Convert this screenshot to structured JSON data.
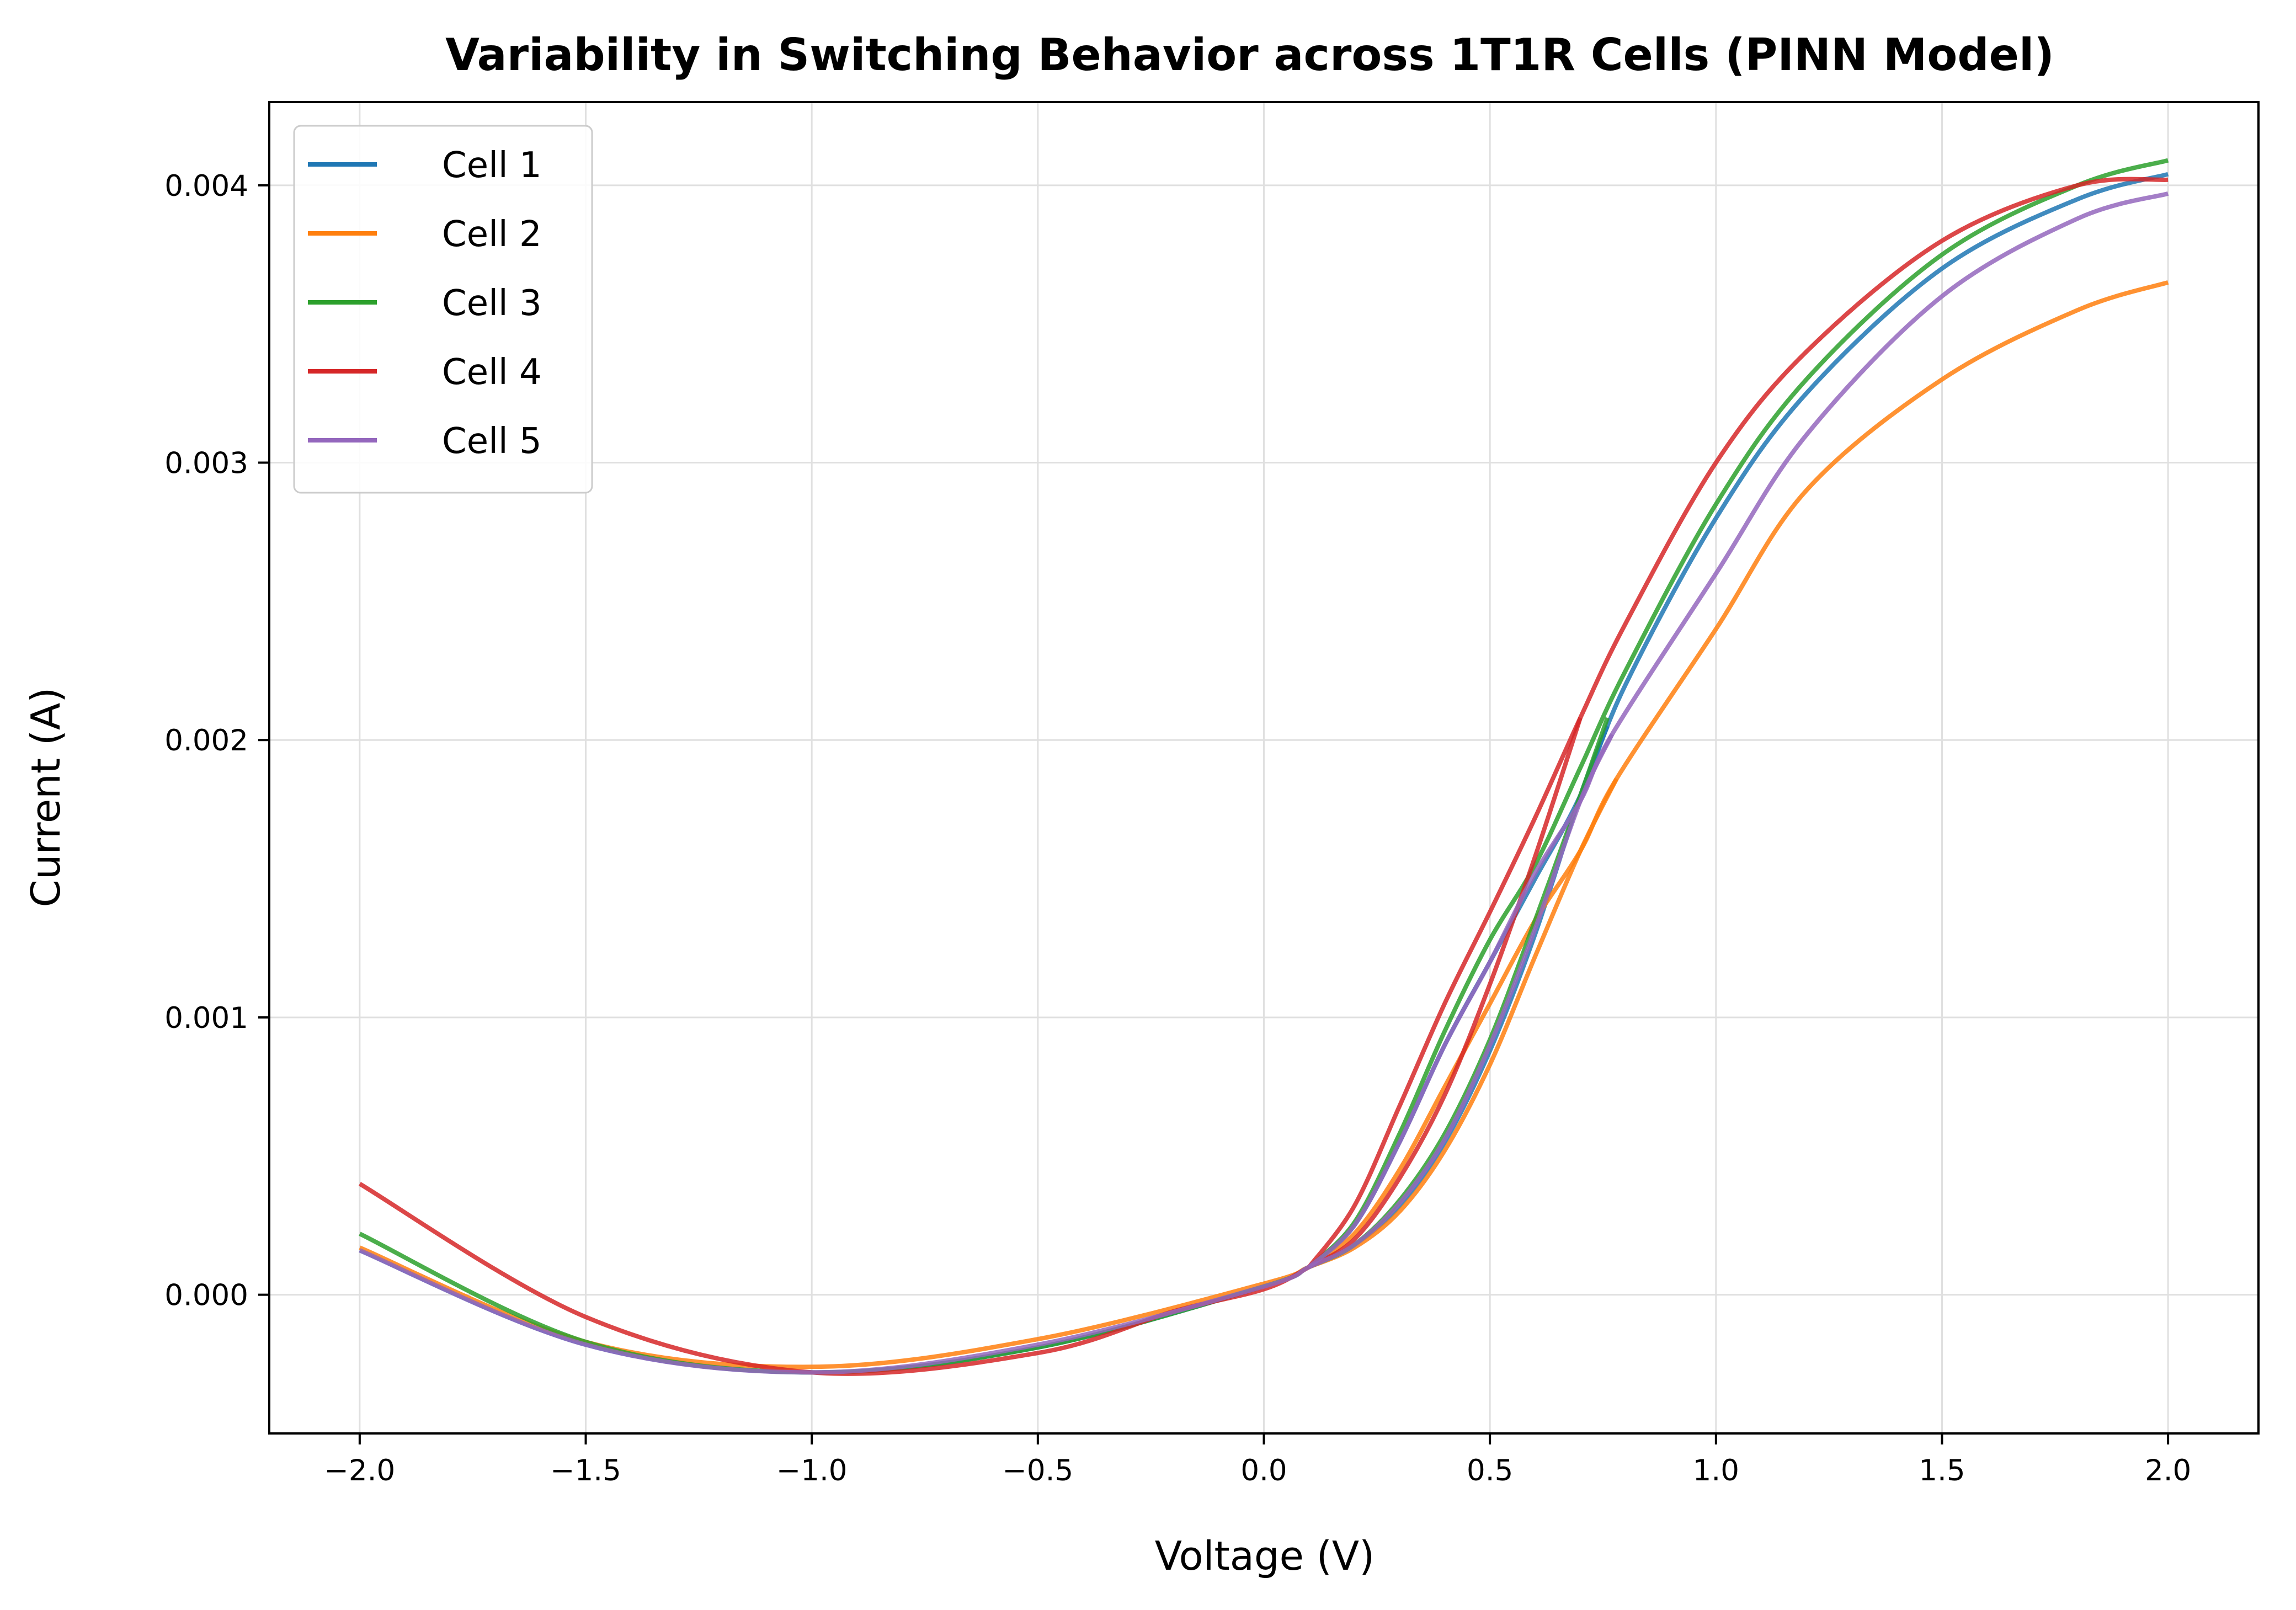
{
  "chart_data": {
    "type": "line",
    "title": "Variability in Switching Behavior across 1T1R Cells (PINN Model)",
    "xlabel": "Voltage (V)",
    "ylabel": "Current (A)",
    "xlim": [
      -2.2,
      2.2
    ],
    "ylim": [
      -0.0005,
      0.0043
    ],
    "xticks": [
      -2.0,
      -1.5,
      -1.0,
      -0.5,
      0.0,
      0.5,
      1.0,
      1.5,
      2.0
    ],
    "xtick_labels": [
      "−2.0",
      "−1.5",
      "−1.0",
      "−0.5",
      "0.0",
      "0.5",
      "1.0",
      "1.5",
      "2.0"
    ],
    "yticks": [
      0.0,
      0.001,
      0.002,
      0.003,
      0.004
    ],
    "ytick_labels": [
      "0.000",
      "0.001",
      "0.002",
      "0.003",
      "0.004"
    ],
    "grid": true,
    "legend_position": "upper-left",
    "series": [
      {
        "name": "Cell 1",
        "color": "#1f77b4",
        "branch_up": [
          [
            -2.0,
            0.00016
          ],
          [
            -1.5,
            -0.00018
          ],
          [
            -1.0,
            -0.00028
          ],
          [
            -0.5,
            -0.00019
          ],
          [
            0.0,
            3e-05
          ],
          [
            0.1,
            0.0001
          ],
          [
            0.2,
            0.00018
          ],
          [
            0.3,
            0.00032
          ],
          [
            0.4,
            0.00055
          ],
          [
            0.5,
            0.00088
          ],
          [
            0.6,
            0.0013
          ],
          [
            0.7,
            0.0018
          ],
          [
            0.76,
            0.00205
          ]
        ],
        "branch_main": [
          [
            0.1,
            0.0001
          ],
          [
            0.2,
            0.00025
          ],
          [
            0.3,
            0.00055
          ],
          [
            0.4,
            0.0009
          ],
          [
            0.5,
            0.0012
          ],
          [
            0.6,
            0.0015
          ],
          [
            0.7,
            0.0018
          ],
          [
            0.8,
            0.0022
          ],
          [
            1.0,
            0.0028
          ],
          [
            1.2,
            0.00325
          ],
          [
            1.5,
            0.0037
          ],
          [
            1.8,
            0.00395
          ],
          [
            2.0,
            0.00404
          ]
        ]
      },
      {
        "name": "Cell 2",
        "color": "#ff7f0e",
        "branch_up": [
          [
            -2.0,
            0.00017
          ],
          [
            -1.5,
            -0.00017
          ],
          [
            -1.0,
            -0.00026
          ],
          [
            -0.5,
            -0.00016
          ],
          [
            0.0,
            4e-05
          ],
          [
            0.1,
            0.0001
          ],
          [
            0.2,
            0.00017
          ],
          [
            0.3,
            0.0003
          ],
          [
            0.4,
            0.00052
          ],
          [
            0.5,
            0.00083
          ],
          [
            0.6,
            0.00122
          ],
          [
            0.7,
            0.0016
          ],
          [
            0.78,
            0.00186
          ]
        ],
        "branch_main": [
          [
            0.1,
            0.0001
          ],
          [
            0.2,
            0.00022
          ],
          [
            0.3,
            0.00045
          ],
          [
            0.4,
            0.00075
          ],
          [
            0.5,
            0.00105
          ],
          [
            0.6,
            0.00135
          ],
          [
            0.7,
            0.0016
          ],
          [
            0.78,
            0.00186
          ],
          [
            1.0,
            0.0024
          ],
          [
            1.2,
            0.0029
          ],
          [
            1.5,
            0.0033
          ],
          [
            1.8,
            0.00355
          ],
          [
            2.0,
            0.00365
          ]
        ]
      },
      {
        "name": "Cell 3",
        "color": "#2ca02c",
        "branch_up": [
          [
            -2.0,
            0.00022
          ],
          [
            -1.5,
            -0.00017
          ],
          [
            -1.0,
            -0.00028
          ],
          [
            -0.5,
            -0.00019
          ],
          [
            0.0,
            3e-05
          ],
          [
            0.1,
            0.0001
          ],
          [
            0.2,
            0.00018
          ],
          [
            0.3,
            0.00034
          ],
          [
            0.4,
            0.00058
          ],
          [
            0.5,
            0.00092
          ],
          [
            0.6,
            0.00135
          ],
          [
            0.7,
            0.0018
          ],
          [
            0.76,
            0.00208
          ]
        ],
        "branch_main": [
          [
            0.1,
            0.0001
          ],
          [
            0.2,
            0.00026
          ],
          [
            0.3,
            0.00058
          ],
          [
            0.4,
            0.00095
          ],
          [
            0.5,
            0.00128
          ],
          [
            0.6,
            0.00155
          ],
          [
            0.7,
            0.0019
          ],
          [
            0.8,
            0.00225
          ],
          [
            1.0,
            0.00285
          ],
          [
            1.2,
            0.0033
          ],
          [
            1.5,
            0.00375
          ],
          [
            1.8,
            0.004
          ],
          [
            2.0,
            0.00409
          ]
        ]
      },
      {
        "name": "Cell 4",
        "color": "#d62728",
        "branch_up": [
          [
            -2.0,
            0.0004
          ],
          [
            -1.5,
            -8e-05
          ],
          [
            -1.0,
            -0.00028
          ],
          [
            -0.5,
            -0.00021
          ],
          [
            -0.2,
            -6e-05
          ],
          [
            0.0,
            2e-05
          ],
          [
            0.1,
            0.0001
          ],
          [
            0.2,
            0.0002
          ],
          [
            0.3,
            0.00042
          ],
          [
            0.4,
            0.00072
          ],
          [
            0.5,
            0.00112
          ],
          [
            0.6,
            0.00158
          ],
          [
            0.7,
            0.00208
          ]
        ],
        "branch_main": [
          [
            0.1,
            0.0001
          ],
          [
            0.2,
            0.00032
          ],
          [
            0.3,
            0.00068
          ],
          [
            0.4,
            0.00105
          ],
          [
            0.5,
            0.00138
          ],
          [
            0.6,
            0.00172
          ],
          [
            0.7,
            0.00208
          ],
          [
            0.8,
            0.00242
          ],
          [
            1.0,
            0.003
          ],
          [
            1.2,
            0.0034
          ],
          [
            1.5,
            0.0038
          ],
          [
            1.8,
            0.004
          ],
          [
            2.0,
            0.00402
          ]
        ]
      },
      {
        "name": "Cell 5",
        "color": "#9467bd",
        "branch_up": [
          [
            -2.0,
            0.00016
          ],
          [
            -1.5,
            -0.00018
          ],
          [
            -1.0,
            -0.00028
          ],
          [
            -0.5,
            -0.00018
          ],
          [
            0.0,
            3e-05
          ],
          [
            0.1,
            0.0001
          ],
          [
            0.2,
            0.00018
          ],
          [
            0.3,
            0.00033
          ],
          [
            0.4,
            0.00056
          ],
          [
            0.5,
            0.0009
          ],
          [
            0.6,
            0.00132
          ],
          [
            0.7,
            0.00178
          ],
          [
            0.77,
            0.00202
          ]
        ],
        "branch_main": [
          [
            0.1,
            0.0001
          ],
          [
            0.2,
            0.00025
          ],
          [
            0.3,
            0.00055
          ],
          [
            0.4,
            0.0009
          ],
          [
            0.5,
            0.0012
          ],
          [
            0.6,
            0.00152
          ],
          [
            0.7,
            0.00178
          ],
          [
            0.77,
            0.00202
          ],
          [
            1.0,
            0.0026
          ],
          [
            1.2,
            0.0031
          ],
          [
            1.5,
            0.0036
          ],
          [
            1.8,
            0.00388
          ],
          [
            2.0,
            0.00397
          ]
        ]
      }
    ]
  }
}
